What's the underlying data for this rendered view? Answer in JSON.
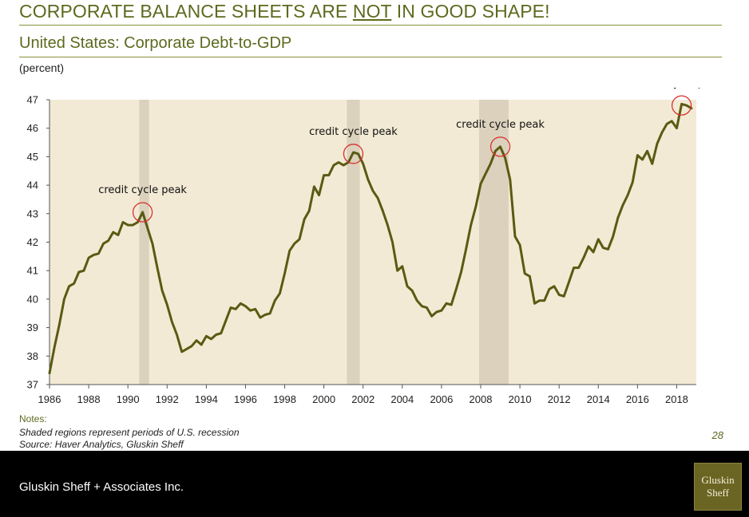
{
  "slide": {
    "title_before": "CORPORATE BALANCE SHEETS ARE ",
    "title_emphasis": "NOT",
    "title_after": " IN GOOD SHAPE!",
    "subtitle": "United States: Corporate Debt-to-GDP",
    "unit_label": "(percent)",
    "notes_heading": "Notes:",
    "note_1": "Shaded regions represent periods of U.S. recession",
    "note_2": "Source: Haver Analytics, Gluskin Sheff",
    "page_number": "28",
    "footer_company": "Gluskin Sheff + Associates Inc.",
    "logo_line_1": "Gluskin",
    "logo_line_2": "Sheff"
  },
  "chart_data": {
    "type": "line",
    "title": "United States: Corporate Debt-to-GDP",
    "ylabel": "(percent)",
    "xlabel": "",
    "xlim": [
      1986,
      2019
    ],
    "ylim": [
      37,
      47
    ],
    "xticks": [
      1986,
      1988,
      1990,
      1992,
      1994,
      1996,
      1998,
      2000,
      2002,
      2004,
      2006,
      2008,
      2010,
      2012,
      2014,
      2016,
      2018
    ],
    "yticks": [
      37,
      38,
      39,
      40,
      41,
      42,
      43,
      44,
      45,
      46,
      47
    ],
    "grid": false,
    "colors": {
      "line": "#5a5a12",
      "plot_bg": "#f3ead5",
      "recession": "#dbd1bc",
      "marker_circle": "#d93030"
    },
    "recessions": [
      [
        1990.58,
        1991.08
      ],
      [
        2001.17,
        2001.83
      ],
      [
        2007.92,
        2009.42
      ]
    ],
    "series": [
      {
        "x": [
          1986.0,
          1986.25,
          1986.5,
          1986.75,
          1987.0,
          1987.25,
          1987.5,
          1987.75,
          1988.0,
          1988.25,
          1988.5,
          1988.75,
          1989.0,
          1989.25,
          1989.5,
          1989.75,
          1990.0,
          1990.25,
          1990.5,
          1990.75,
          1991.0,
          1991.25,
          1991.5,
          1991.75,
          1992.0,
          1992.25,
          1992.5,
          1992.75,
          1993.0,
          1993.25,
          1993.5,
          1993.75,
          1994.0,
          1994.25,
          1994.5,
          1994.75,
          1995.0,
          1995.25,
          1995.5,
          1995.75,
          1996.0,
          1996.25,
          1996.5,
          1996.75,
          1997.0,
          1997.25,
          1997.5,
          1997.75,
          1998.0,
          1998.25,
          1998.5,
          1998.75,
          1999.0,
          1999.25,
          1999.5,
          1999.75,
          2000.0,
          2000.25,
          2000.5,
          2000.75,
          2001.0,
          2001.25,
          2001.5,
          2001.75,
          2002.0,
          2002.25,
          2002.5,
          2002.75,
          2003.0,
          2003.25,
          2003.5,
          2003.75,
          2004.0,
          2004.25,
          2004.5,
          2004.75,
          2005.0,
          2005.25,
          2005.5,
          2005.75,
          2006.0,
          2006.25,
          2006.5,
          2006.75,
          2007.0,
          2007.25,
          2007.5,
          2007.75,
          2008.0,
          2008.25,
          2008.5,
          2008.75,
          2009.0,
          2009.25,
          2009.5,
          2009.75,
          2010.0,
          2010.25,
          2010.5,
          2010.75,
          2011.0,
          2011.25,
          2011.5,
          2011.75,
          2012.0,
          2012.25,
          2012.5,
          2012.75,
          2013.0,
          2013.25,
          2013.5,
          2013.75,
          2014.0,
          2014.25,
          2014.5,
          2014.75,
          2015.0,
          2015.25,
          2015.5,
          2015.75,
          2016.0,
          2016.25,
          2016.5,
          2016.75,
          2017.0,
          2017.25,
          2017.5,
          2017.75,
          2018.0,
          2018.25,
          2018.5,
          2018.75
        ],
        "values": [
          37.4,
          38.3,
          39.1,
          40.0,
          40.45,
          40.55,
          40.95,
          41.0,
          41.45,
          41.55,
          41.6,
          41.95,
          42.05,
          42.35,
          42.25,
          42.7,
          42.6,
          42.6,
          42.7,
          43.05,
          42.5,
          41.95,
          41.1,
          40.3,
          39.8,
          39.2,
          38.75,
          38.15,
          38.25,
          38.35,
          38.55,
          38.4,
          38.7,
          38.6,
          38.75,
          38.8,
          39.25,
          39.7,
          39.65,
          39.85,
          39.75,
          39.6,
          39.65,
          39.35,
          39.45,
          39.5,
          39.95,
          40.2,
          40.9,
          41.7,
          41.95,
          42.1,
          42.8,
          43.1,
          43.95,
          43.65,
          44.35,
          44.35,
          44.7,
          44.8,
          44.7,
          44.8,
          45.15,
          45.1,
          44.75,
          44.2,
          43.8,
          43.55,
          43.1,
          42.6,
          42.0,
          41.0,
          41.15,
          40.45,
          40.3,
          39.95,
          39.75,
          39.7,
          39.4,
          39.55,
          39.6,
          39.85,
          39.8,
          40.35,
          40.95,
          41.75,
          42.6,
          43.25,
          44.05,
          44.4,
          44.75,
          45.2,
          45.35,
          44.95,
          44.2,
          42.2,
          41.9,
          40.9,
          40.8,
          39.85,
          39.95,
          39.95,
          40.35,
          40.45,
          40.15,
          40.1,
          40.6,
          41.1,
          41.1,
          41.45,
          41.85,
          41.65,
          42.1,
          41.8,
          41.75,
          42.2,
          42.85,
          43.3,
          43.65,
          44.1,
          45.05,
          44.9,
          45.2,
          44.75,
          45.45,
          45.85,
          46.15,
          46.25,
          46.0,
          46.85,
          46.8,
          46.7
        ]
      }
    ],
    "annotations": [
      {
        "text": "credit cycle peak",
        "x": 1990.75,
        "y": 43.05
      },
      {
        "text": "credit cycle peak",
        "x": 2001.5,
        "y": 45.1
      },
      {
        "text": "credit cycle peak",
        "x": 2009.0,
        "y": 45.35
      },
      {
        "text": "credit cycle peak?",
        "x": 2018.25,
        "y": 46.8
      }
    ]
  }
}
